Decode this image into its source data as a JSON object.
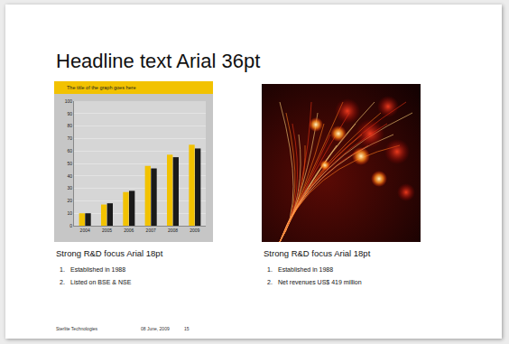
{
  "headline": "Headline text Arial 36pt",
  "chart_data": {
    "type": "bar",
    "title": "The title of the graph goes here",
    "categories": [
      "2004",
      "2005",
      "2006",
      "2007",
      "2008",
      "2009"
    ],
    "series": [
      {
        "color": "#f2c200",
        "values": [
          10,
          17,
          27,
          48,
          57,
          65
        ]
      },
      {
        "color": "#1a1a1a",
        "values": [
          10,
          18,
          28,
          46,
          55,
          62
        ]
      }
    ],
    "ylim": [
      0,
      100
    ],
    "yticks": [
      0,
      10,
      20,
      30,
      40,
      50,
      60,
      70,
      80,
      90,
      100
    ],
    "grid": true
  },
  "panels": [
    {
      "heading": "Strong R&D focus Arial 18pt",
      "list": [
        {
          "number": "1.",
          "text": "Established in 1988"
        },
        {
          "number": "2.",
          "text": "Listed on BSE & NSE"
        }
      ]
    },
    {
      "heading": "Strong R&D focus Arial 18pt",
      "list": [
        {
          "number": "1.",
          "text": "Established in 1988"
        },
        {
          "number": "2.",
          "text": "Net revenues US$ 419 million"
        }
      ]
    }
  ],
  "footer": {
    "company": "Sterlite Technologies",
    "date": "08 June, 2009",
    "page": "15"
  }
}
